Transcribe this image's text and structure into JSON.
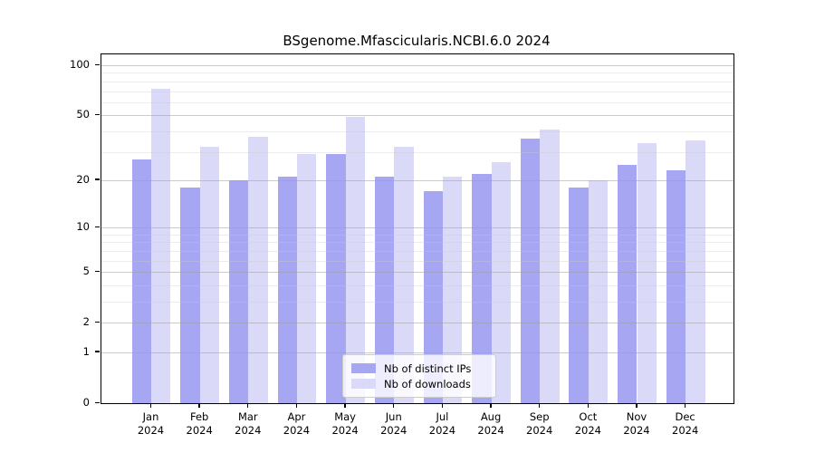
{
  "chart_data": {
    "type": "bar",
    "title": "BSgenome.Mfascicularis.NCBI.6.0 2024",
    "categories": [
      "Jan 2024",
      "Feb 2024",
      "Mar 2024",
      "Apr 2024",
      "May 2024",
      "Jun 2024",
      "Jul 2024",
      "Aug 2024",
      "Sep 2024",
      "Oct 2024",
      "Nov 2024",
      "Dec 2024"
    ],
    "series": [
      {
        "name": "Nb of distinct IPs",
        "color": "#a6a6f2",
        "values": [
          27,
          18,
          20,
          21,
          29,
          21,
          17,
          22,
          36,
          18,
          25,
          23
        ]
      },
      {
        "name": "Nb of downloads",
        "color": "#dadaf8",
        "values": [
          72,
          32,
          37,
          29,
          49,
          32,
          21,
          26,
          41,
          20,
          34,
          35
        ]
      }
    ],
    "y_scale": "log1p",
    "y_ticks": [
      0,
      1,
      2,
      5,
      10,
      20,
      50,
      100
    ],
    "y_minor_ticks": [
      3,
      4,
      6,
      7,
      8,
      9,
      30,
      40,
      60,
      70,
      80,
      90
    ],
    "ylim": [
      0,
      116
    ],
    "xlabel": "",
    "ylabel": "",
    "grid": "horizontal",
    "legend_position": "inside-bottom-center"
  }
}
